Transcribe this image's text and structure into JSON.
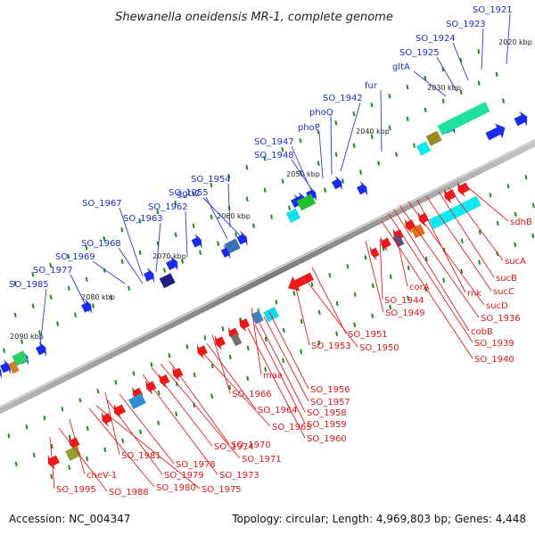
{
  "title": "Shewanella oneidensis MR-1, complete genome",
  "accession": "Accession: NC_004347",
  "topology": "Topology: circular; Length: 4,969,803 bp; Genes: 4,448",
  "colors": {
    "forward_gene": "#1a2bf0",
    "reverse_gene": "#f01818",
    "backbone": "#888888",
    "tick": "#1a8c1a",
    "label_forward": "#1a2fd0",
    "label_reverse": "#e01818"
  },
  "kbp_ticks": [
    "2020 kbp",
    "2030 kbp",
    "2040 kbp",
    "2050 kbp",
    "2060 kbp",
    "2070 kbp",
    "2080 kbp",
    "2090 kbp"
  ],
  "forward_labels": [
    "SO_1921",
    "SO_1923",
    "SO_1924",
    "SO_1925",
    "gltA",
    "fur",
    "SO_1942",
    "phoQ",
    "phoP",
    "SO_1947",
    "SO_1948",
    "SO_1954",
    "ggt-2",
    "SO_1955",
    "SO_1962",
    "SO_1967",
    "SO_1963",
    "SO_1968",
    "SO_1969",
    "SO_1977",
    "SO_1985"
  ],
  "reverse_labels": [
    "sdhB",
    "sucA",
    "sucB",
    "sucC",
    "rnk",
    "sucD",
    "SO_1936",
    "cobB",
    "SO_1939",
    "SO_1940",
    "corA",
    "SO_1944",
    "SO_1949",
    "SO_1951",
    "SO_1950",
    "SO_1953",
    "maa",
    "SO_1956",
    "SO_1957",
    "SO_1958",
    "SO_1959",
    "SO_1960",
    "SO_1966",
    "SO_1964",
    "SO_1965",
    "SO_1970",
    "SO_1971",
    "SO_1974",
    "SO_1973",
    "SO_1981",
    "SO_1978",
    "SO_1979",
    "SO_1975",
    "SO_1980",
    "cheV-1",
    "SO_1988",
    "SO_1995"
  ]
}
